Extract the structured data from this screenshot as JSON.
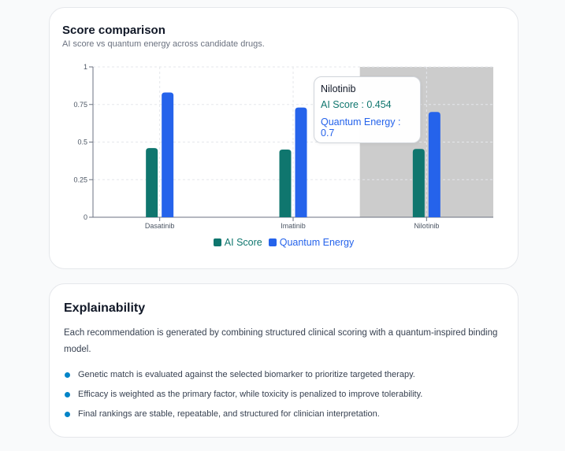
{
  "chart_card": {
    "title": "Score comparison",
    "subtitle": "AI score vs quantum energy across candidate drugs."
  },
  "chart_data": {
    "type": "bar",
    "categories": [
      "Dasatinib",
      "Imatinib",
      "Nilotinib"
    ],
    "series": [
      {
        "name": "AI Score",
        "color": "#0f766e",
        "values": [
          0.46,
          0.45,
          0.454
        ]
      },
      {
        "name": "Quantum Energy",
        "color": "#2563eb",
        "values": [
          0.83,
          0.73,
          0.7
        ]
      }
    ],
    "ylim": [
      0,
      1
    ],
    "yticks": [
      "0",
      "0.25",
      "0.5",
      "0.75",
      "1"
    ],
    "grid": true,
    "legend": "bottom-center",
    "highlighted_category": "Nilotinib",
    "tooltip": {
      "title": "Nilotinib",
      "rows": [
        "AI Score : 0.454",
        "Quantum Energy : 0.7"
      ]
    }
  },
  "explainability": {
    "title": "Explainability",
    "description": "Each recommendation is generated by combining structured clinical scoring with a quantum-inspired binding model.",
    "points": [
      "Genetic match is evaluated against the selected biomarker to prioritize targeted therapy.",
      "Efficacy is weighted as the primary factor, while toxicity is penalized to improve tolerability.",
      "Final rankings are stable, repeatable, and structured for clinician interpretation."
    ],
    "bullet_color": "#0284c7"
  }
}
